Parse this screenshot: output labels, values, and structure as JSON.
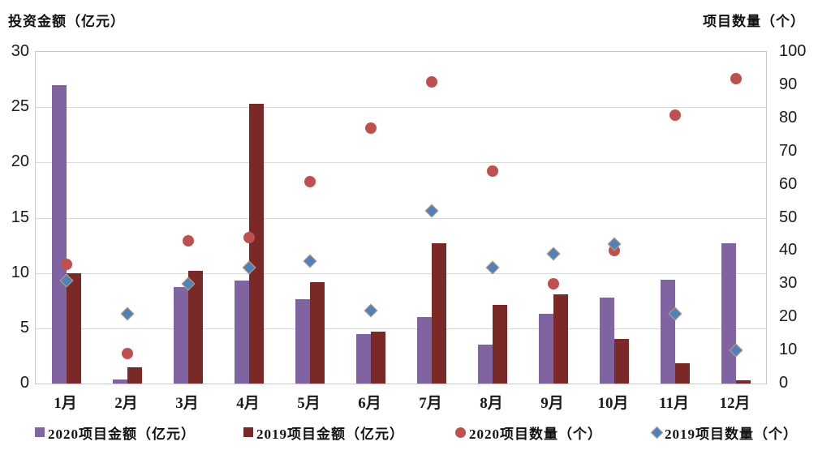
{
  "chart_data": {
    "type": "combo-bar-scatter",
    "title": "",
    "categories": [
      "1月",
      "2月",
      "3月",
      "4月",
      "5月",
      "6月",
      "7月",
      "8月",
      "9月",
      "10月",
      "11月",
      "12月"
    ],
    "left_axis": {
      "title": "投资金额（亿元）",
      "min": 0,
      "max": 30,
      "step": 5,
      "ticks": [
        0,
        5,
        10,
        15,
        20,
        25,
        30
      ]
    },
    "right_axis": {
      "title": "项目数量（个）",
      "min": 0,
      "max": 100,
      "step": 10,
      "ticks": [
        0,
        10,
        20,
        30,
        40,
        50,
        60,
        70,
        80,
        90,
        100
      ]
    },
    "grid": true,
    "legend_position": "bottom",
    "series": [
      {
        "id": "bar-2020-amount",
        "name": "2020项目金额（亿元）",
        "type": "bar",
        "axis": "left",
        "color": "#8064A2",
        "values": [
          27.0,
          0.4,
          8.7,
          9.3,
          7.6,
          4.5,
          6.0,
          3.5,
          6.3,
          7.8,
          9.4,
          12.7
        ]
      },
      {
        "id": "bar-2019-amount",
        "name": "2019项目金额（亿元）",
        "type": "bar",
        "axis": "left",
        "color": "#7B2927",
        "values": [
          10.0,
          1.5,
          10.2,
          25.3,
          9.2,
          4.7,
          12.7,
          7.1,
          8.1,
          4.0,
          1.8,
          0.3
        ]
      },
      {
        "id": "point-2020-count",
        "name": "2020项目数量（个）",
        "type": "scatter-circle",
        "axis": "right",
        "color": "#C0504D",
        "values": [
          36,
          9,
          43,
          44,
          61,
          77,
          91,
          64,
          30,
          40,
          81,
          92
        ]
      },
      {
        "id": "point-2019-count",
        "name": "2019项目数量（个）",
        "type": "scatter-diamond",
        "axis": "right",
        "color": "#4F81BD",
        "border_color": "#C9A170",
        "values": [
          31,
          21,
          30,
          35,
          37,
          22,
          52,
          35,
          39,
          42,
          21,
          10
        ]
      }
    ],
    "style_colors": {
      "gridline": "#D9D9D9",
      "plot_border": "#C9C9C9",
      "text": "#1A1A1A"
    }
  }
}
